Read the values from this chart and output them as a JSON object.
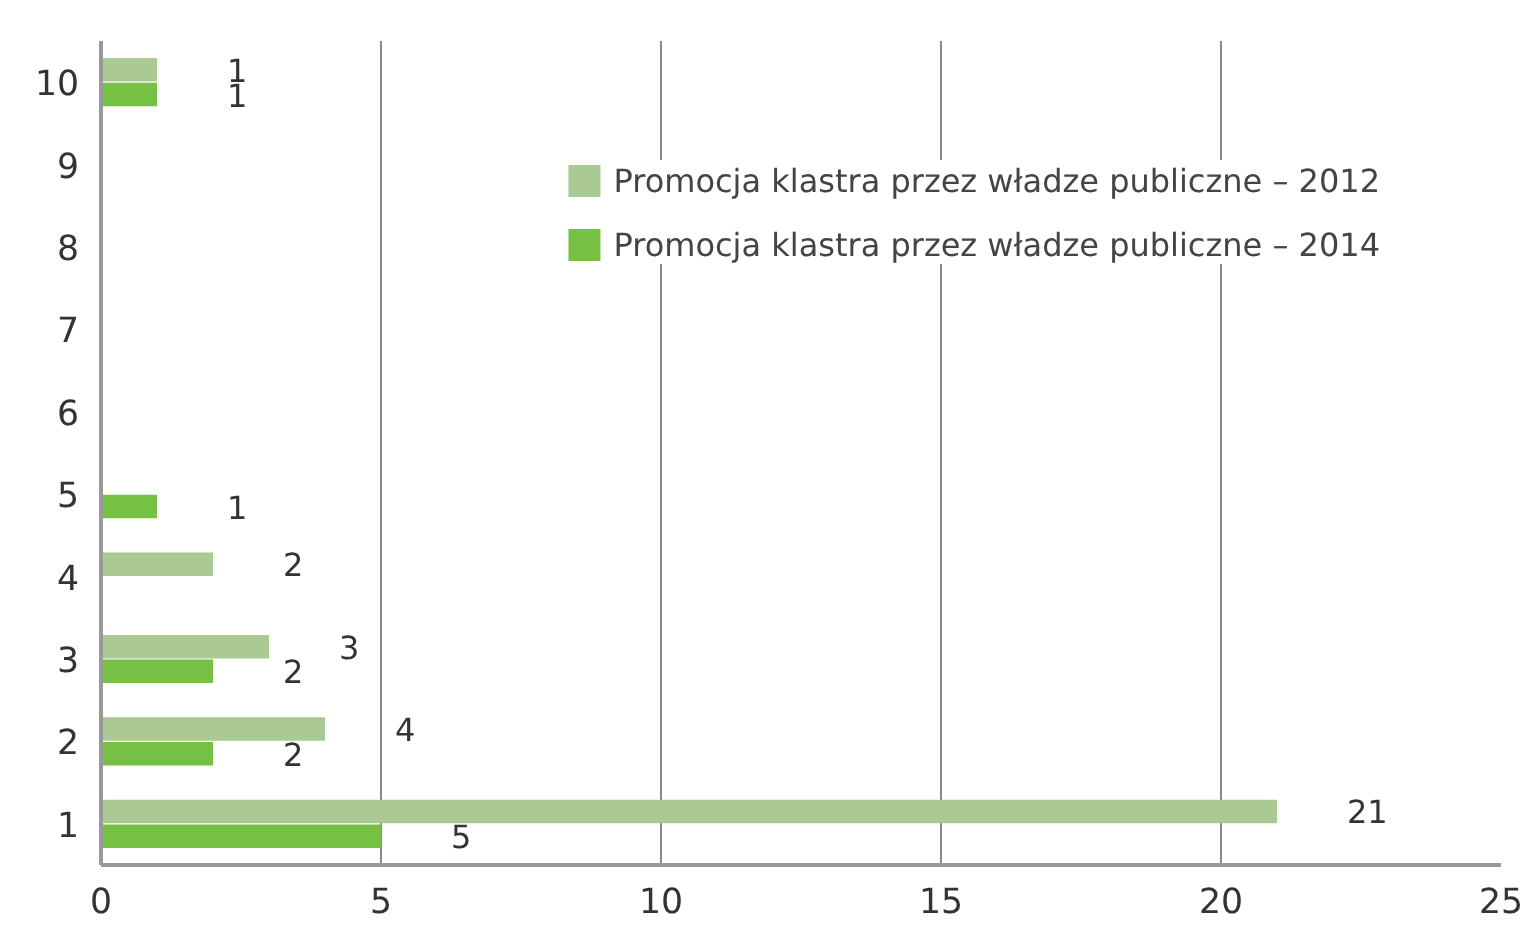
{
  "chart_data": {
    "type": "bar",
    "orientation": "horizontal",
    "categories": [
      "10",
      "9",
      "8",
      "7",
      "6",
      "5",
      "4",
      "3",
      "2",
      "1"
    ],
    "series": [
      {
        "name": "Promocja klastra przez władze publiczne – 2012",
        "color": "#abc993",
        "values": [
          1,
          null,
          null,
          null,
          null,
          null,
          2,
          3,
          4,
          21
        ]
      },
      {
        "name": "Promocja klastra przez władze publiczne – 2014",
        "color": "#76c043",
        "values": [
          1,
          null,
          null,
          null,
          null,
          1,
          null,
          2,
          2,
          5
        ]
      }
    ],
    "xlim": [
      0,
      25
    ],
    "xticks": [
      0,
      5,
      10,
      15,
      20,
      25
    ],
    "grid": "x",
    "legend": "top right",
    "data_labels": true
  }
}
